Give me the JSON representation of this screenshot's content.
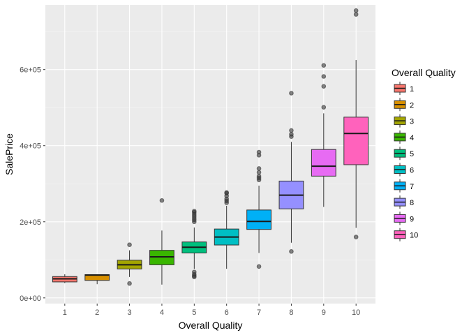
{
  "chart_data": {
    "type": "boxplot",
    "xlabel": "Overall Quality",
    "ylabel": "SalePrice",
    "ylim": [
      -15000,
      770000
    ],
    "y_ticks": [
      0,
      200000,
      400000,
      600000
    ],
    "y_tick_labels": [
      "0e+00",
      "2e+05",
      "4e+05",
      "6e+05"
    ],
    "grid": true,
    "legend": {
      "title": "Overall Quality",
      "placement": "right",
      "entries": [
        "1",
        "2",
        "3",
        "4",
        "5",
        "6",
        "7",
        "8",
        "9",
        "10"
      ]
    },
    "series": [
      {
        "name": "1",
        "color": "#F8766D",
        "whisker_low": 39000,
        "q1": 42000,
        "median": 50000,
        "q3": 56000,
        "whisker_high": 62000,
        "outliers": []
      },
      {
        "name": "2",
        "color": "#D89000",
        "whisker_low": 36000,
        "q1": 46000,
        "median": 60000,
        "q3": 61000,
        "whisker_high": 62000,
        "outliers": []
      },
      {
        "name": "3",
        "color": "#A3A500",
        "whisker_low": 55000,
        "q1": 76000,
        "median": 87000,
        "q3": 99000,
        "whisker_high": 125000,
        "outliers": [
          139600,
          37900
        ]
      },
      {
        "name": "4",
        "color": "#39B600",
        "whisker_low": 34900,
        "q1": 87000,
        "median": 108000,
        "q3": 125000,
        "whisker_high": 177000,
        "outliers": [
          256000
        ]
      },
      {
        "name": "5",
        "color": "#00BF7D",
        "whisker_low": 76000,
        "q1": 118000,
        "median": 133000,
        "q3": 147000,
        "whisker_high": 185000,
        "outliers": [
          200000,
          205000,
          210000,
          215000,
          220000,
          225000,
          228000,
          68000,
          62000,
          58000,
          55000
        ]
      },
      {
        "name": "6",
        "color": "#00BFC4",
        "whisker_low": 76500,
        "q1": 139000,
        "median": 160000,
        "q3": 181000,
        "whisker_high": 242000,
        "outliers": [
          250000,
          255000,
          260000,
          268000,
          275000,
          277000
        ]
      },
      {
        "name": "7",
        "color": "#00B0F6",
        "whisker_low": 118000,
        "q1": 180000,
        "median": 201000,
        "q3": 231000,
        "whisker_high": 295000,
        "outliers": [
          310000,
          315000,
          320000,
          330000,
          340000,
          375000,
          383000,
          82500
        ]
      },
      {
        "name": "8",
        "color": "#9590FF",
        "whisker_low": 145000,
        "q1": 234000,
        "median": 270000,
        "q3": 307000,
        "whisker_high": 410000,
        "outliers": [
          424000,
          430000,
          440000,
          538000,
          122000
        ]
      },
      {
        "name": "9",
        "color": "#E76BF3",
        "whisker_low": 239000,
        "q1": 320000,
        "median": 346000,
        "q3": 390000,
        "whisker_high": 485000,
        "outliers": [
          501000,
          556000,
          582000,
          611000
        ]
      },
      {
        "name": "10",
        "color": "#FF62BC",
        "whisker_low": 184000,
        "q1": 350000,
        "median": 432000,
        "q3": 475000,
        "whisker_high": 625000,
        "outliers": [
          745000,
          755000,
          160000
        ]
      }
    ]
  }
}
